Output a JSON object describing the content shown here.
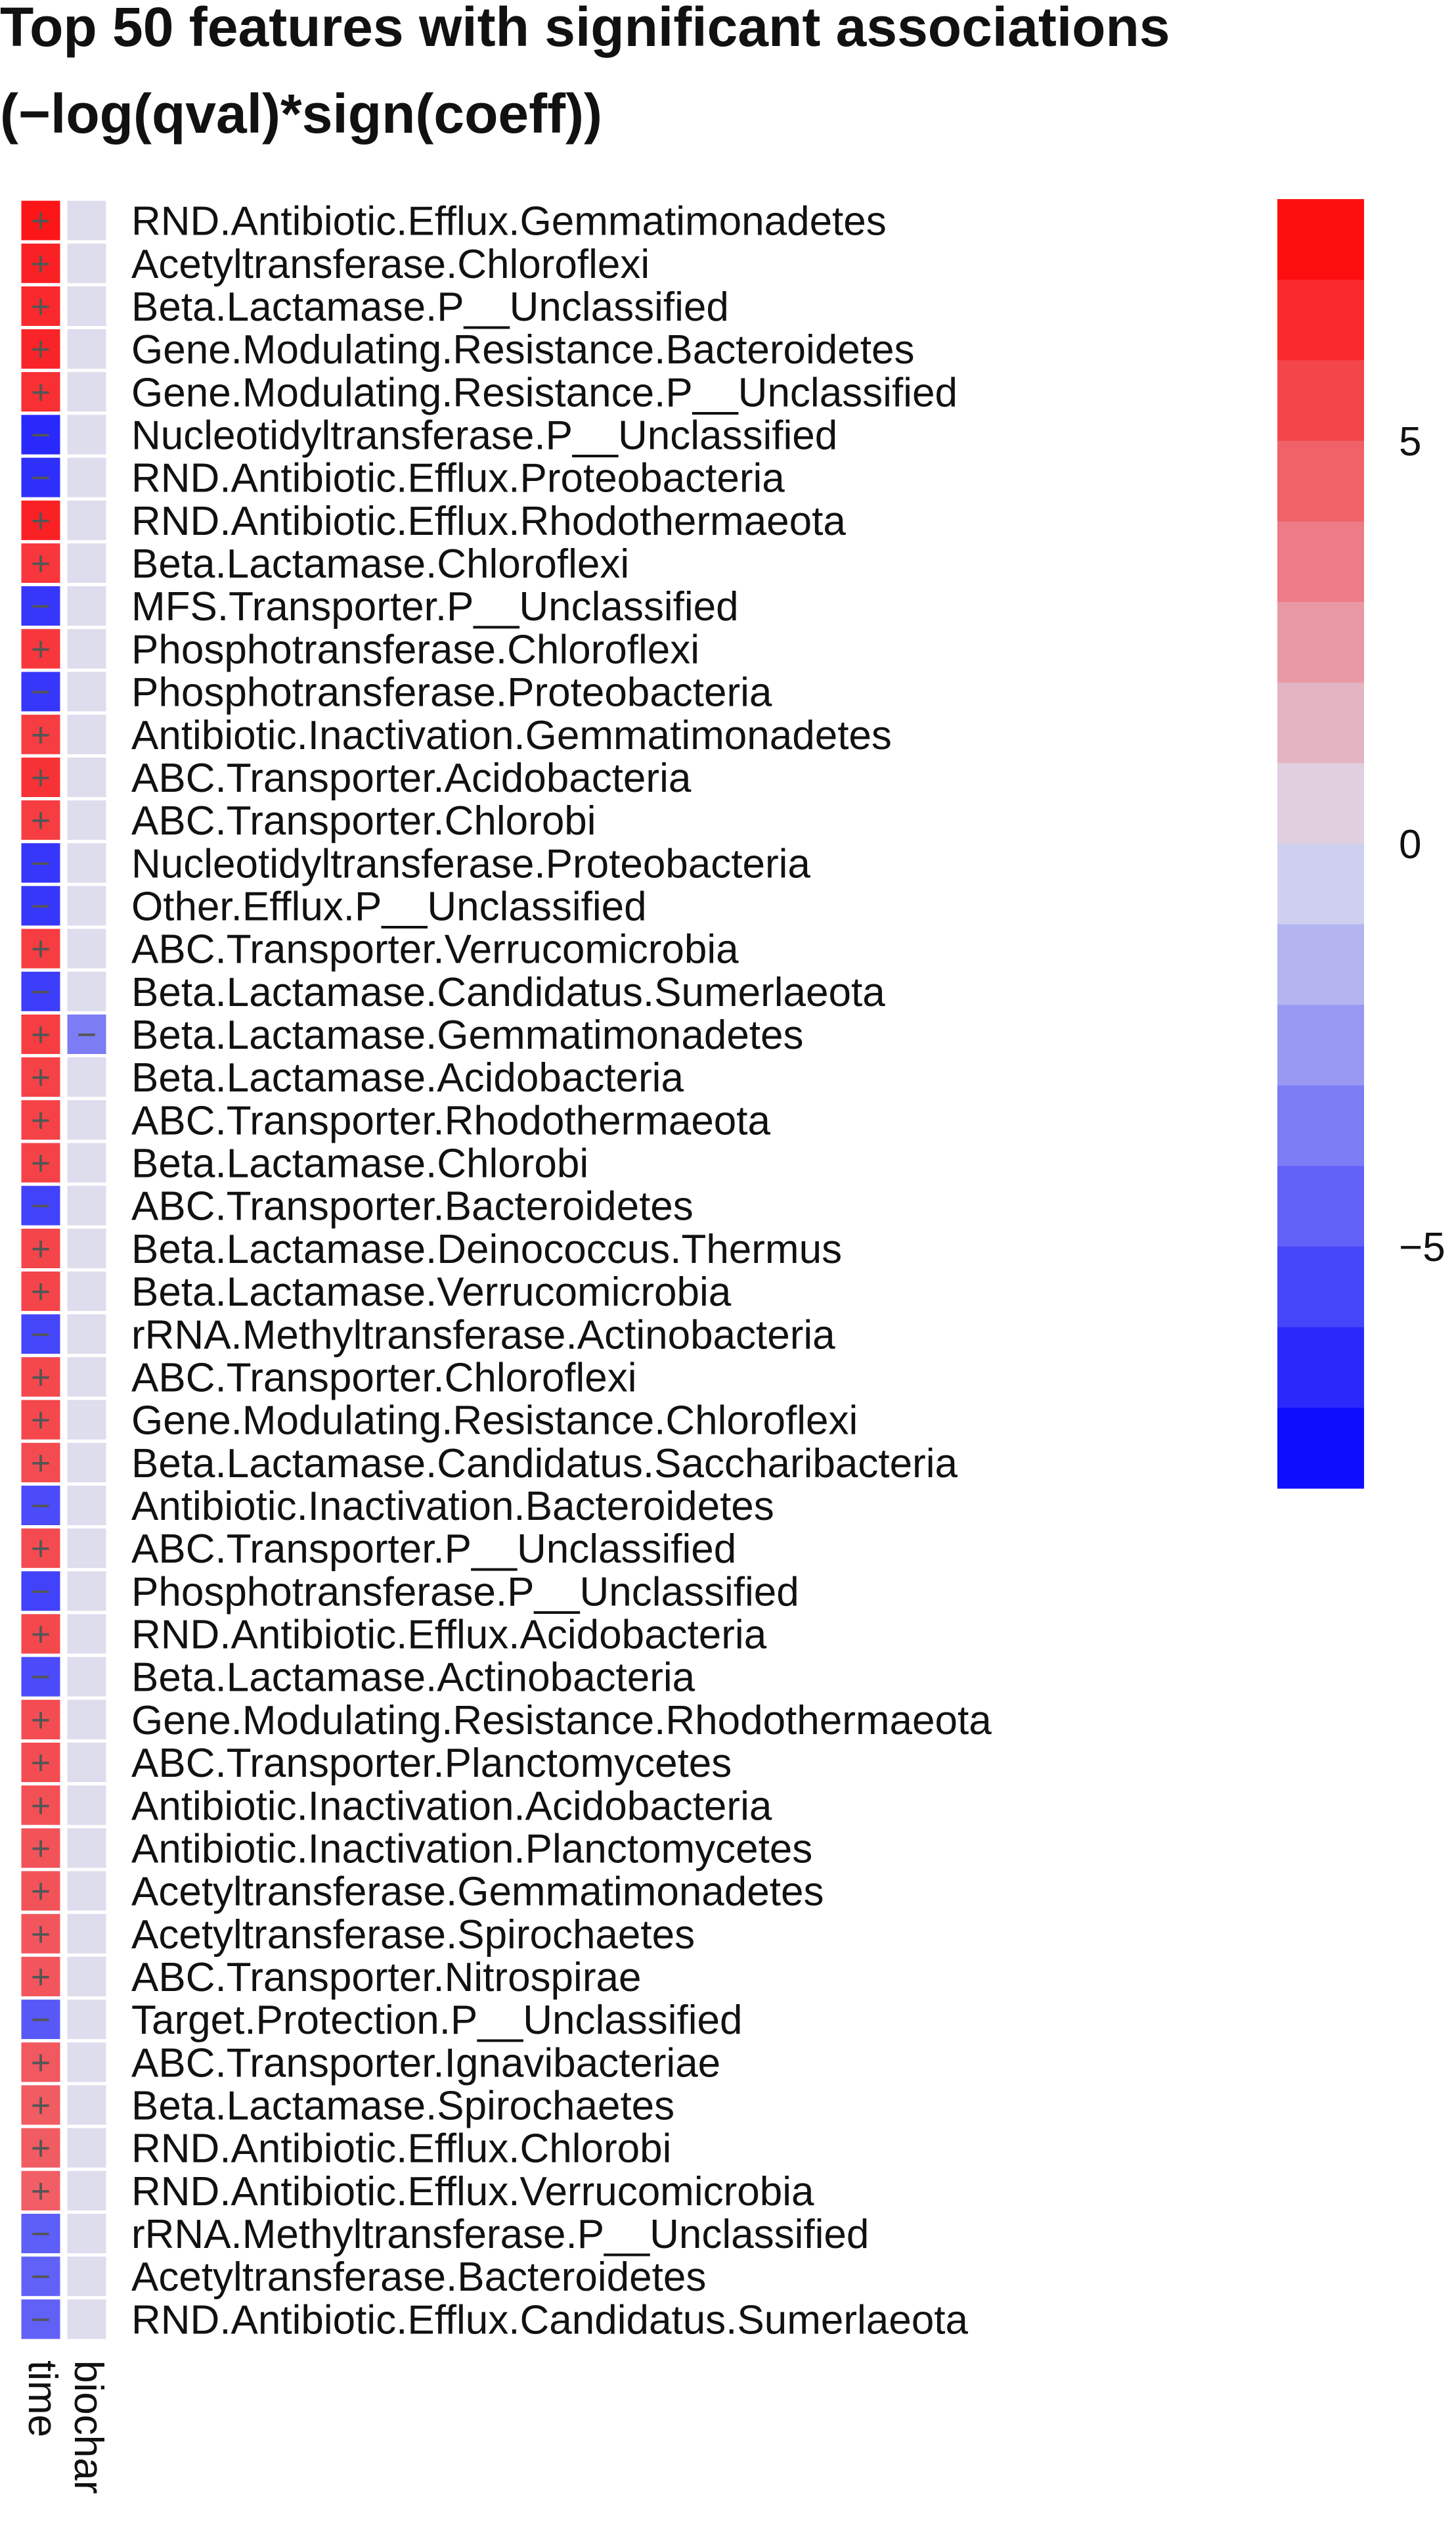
{
  "chart_data": {
    "type": "heatmap",
    "title_line1": "Top 50 features with significant associations",
    "title_line2": "(−log(qval)*sign(coeff))",
    "columns": [
      "time",
      "biochar"
    ],
    "rows": [
      {
        "label": "RND.Antibiotic.Efflux.Gemmatimonadetes",
        "values": [
          7.2,
          0.0
        ]
      },
      {
        "label": "Acetyltransferase.Chloroflexi",
        "values": [
          6.8,
          0.0
        ]
      },
      {
        "label": "Beta.Lactamase.P__Unclassified",
        "values": [
          6.5,
          0.0
        ]
      },
      {
        "label": "Gene.Modulating.Resistance.Bacteroidetes",
        "values": [
          6.7,
          0.0
        ]
      },
      {
        "label": "Gene.Modulating.Resistance.P__Unclassified",
        "values": [
          6.3,
          0.0
        ]
      },
      {
        "label": "Nucleotidyltransferase.P__Unclassified",
        "values": [
          -6.5,
          0.0
        ]
      },
      {
        "label": "RND.Antibiotic.Efflux.Proteobacteria",
        "values": [
          -6.3,
          0.0
        ]
      },
      {
        "label": "RND.Antibiotic.Efflux.Rhodothermaeota",
        "values": [
          6.8,
          0.0
        ]
      },
      {
        "label": "Beta.Lactamase.Chloroflexi",
        "values": [
          6.0,
          0.0
        ]
      },
      {
        "label": "MFS.Transporter.P__Unclassified",
        "values": [
          -6.0,
          0.0
        ]
      },
      {
        "label": "Phosphotransferase.Chloroflexi",
        "values": [
          6.0,
          0.0
        ]
      },
      {
        "label": "Phosphotransferase.Proteobacteria",
        "values": [
          -6.0,
          0.0
        ]
      },
      {
        "label": "Antibiotic.Inactivation.Gemmatimonadetes",
        "values": [
          5.8,
          0.0
        ]
      },
      {
        "label": "ABC.Transporter.Acidobacteria",
        "values": [
          6.2,
          0.0
        ]
      },
      {
        "label": "ABC.Transporter.Chlorobi",
        "values": [
          5.8,
          0.0
        ]
      },
      {
        "label": "Nucleotidyltransferase.Proteobacteria",
        "values": [
          -6.0,
          0.0
        ]
      },
      {
        "label": "Other.Efflux.P__Unclassified",
        "values": [
          -6.0,
          0.0
        ]
      },
      {
        "label": "ABC.Transporter.Verrucomicrobia",
        "values": [
          5.8,
          0.0
        ]
      },
      {
        "label": "Beta.Lactamase.Candidatus.Sumerlaeota",
        "values": [
          -5.8,
          0.0
        ]
      },
      {
        "label": "Beta.Lactamase.Gemmatimonadetes",
        "values": [
          5.8,
          -3.5
        ]
      },
      {
        "label": "Beta.Lactamase.Acidobacteria",
        "values": [
          5.6,
          0.0
        ]
      },
      {
        "label": "ABC.Transporter.Rhodothermaeota",
        "values": [
          5.6,
          0.0
        ]
      },
      {
        "label": "Beta.Lactamase.Chlorobi",
        "values": [
          5.6,
          0.0
        ]
      },
      {
        "label": "ABC.Transporter.Bacteroidetes",
        "values": [
          -5.6,
          0.0
        ]
      },
      {
        "label": "Beta.Lactamase.Deinococcus.Thermus",
        "values": [
          5.5,
          0.0
        ]
      },
      {
        "label": "Beta.Lactamase.Verrucomicrobia",
        "values": [
          5.5,
          0.0
        ]
      },
      {
        "label": "rRNA.Methyltransferase.Actinobacteria",
        "values": [
          -5.5,
          0.0
        ]
      },
      {
        "label": "ABC.Transporter.Chloroflexi",
        "values": [
          5.4,
          0.0
        ]
      },
      {
        "label": "Gene.Modulating.Resistance.Chloroflexi",
        "values": [
          5.4,
          0.0
        ]
      },
      {
        "label": "Beta.Lactamase.Candidatus.Saccharibacteria",
        "values": [
          5.3,
          0.0
        ]
      },
      {
        "label": "Antibiotic.Inactivation.Bacteroidetes",
        "values": [
          -5.3,
          0.0
        ]
      },
      {
        "label": "ABC.Transporter.P__Unclassified",
        "values": [
          5.3,
          0.0
        ]
      },
      {
        "label": "Phosphotransferase.P__Unclassified",
        "values": [
          -5.6,
          0.0
        ]
      },
      {
        "label": "RND.Antibiotic.Efflux.Acidobacteria",
        "values": [
          5.4,
          0.0
        ]
      },
      {
        "label": "Beta.Lactamase.Actinobacteria",
        "values": [
          -5.3,
          0.0
        ]
      },
      {
        "label": "Gene.Modulating.Resistance.Rhodothermaeota",
        "values": [
          5.2,
          0.0
        ]
      },
      {
        "label": "ABC.Transporter.Planctomycetes",
        "values": [
          5.2,
          0.0
        ]
      },
      {
        "label": "Antibiotic.Inactivation.Acidobacteria",
        "values": [
          5.1,
          0.0
        ]
      },
      {
        "label": "Antibiotic.Inactivation.Planctomycetes",
        "values": [
          5.0,
          0.0
        ]
      },
      {
        "label": "Acetyltransferase.Gemmatimonadetes",
        "values": [
          5.0,
          0.0
        ]
      },
      {
        "label": "Acetyltransferase.Spirochaetes",
        "values": [
          4.9,
          0.0
        ]
      },
      {
        "label": "ABC.Transporter.Nitrospirae",
        "values": [
          4.9,
          0.0
        ]
      },
      {
        "label": "Target.Protection.P__Unclassified",
        "values": [
          -4.8,
          0.0
        ]
      },
      {
        "label": "ABC.Transporter.Ignavibacteriae",
        "values": [
          4.8,
          0.0
        ]
      },
      {
        "label": "Beta.Lactamase.Spirochaetes",
        "values": [
          4.7,
          0.0
        ]
      },
      {
        "label": "RND.Antibiotic.Efflux.Chlorobi",
        "values": [
          4.7,
          0.0
        ]
      },
      {
        "label": "RND.Antibiotic.Efflux.Verrucomicrobia",
        "values": [
          4.6,
          0.0
        ]
      },
      {
        "label": "rRNA.Methyltransferase.P__Unclassified",
        "values": [
          -4.6,
          0.0
        ]
      },
      {
        "label": "Acetyltransferase.Bacteroidetes",
        "values": [
          -4.5,
          0.0
        ]
      },
      {
        "label": "RND.Antibiotic.Efflux.Candidatus.Sumerlaeota",
        "values": [
          -4.5,
          0.0
        ]
      }
    ],
    "significance_symbols": {
      "positive": "+",
      "negative": "−"
    },
    "color_scale": {
      "min": -8,
      "max": 8,
      "low_color": "#0000ff",
      "mid_color": "#ddddee",
      "high_color": "#ff0000",
      "ticks": [
        5,
        0,
        -5
      ],
      "tick_labels": [
        "5",
        "0",
        "−5"
      ]
    },
    "legend_position": "right",
    "grid": false
  }
}
